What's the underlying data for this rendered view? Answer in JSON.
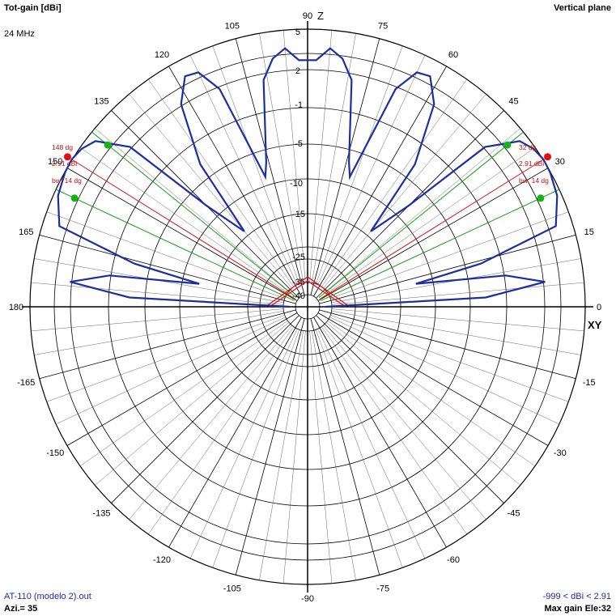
{
  "header": {
    "title": "Tot-gain [dBi]",
    "plane": "Vertical plane",
    "frequency": "24 MHz"
  },
  "footer": {
    "file": "AT-110 (modelo 2).out",
    "azimuth": "Azi.= 35",
    "range": "-999 < dBi < 2.91",
    "max_gain": "Max gain Ele:32"
  },
  "axes": {
    "top": "Z",
    "right": "XY"
  },
  "chart_data": {
    "type": "polar",
    "title": "Tot-gain [dBi]",
    "angle_unit": "degrees",
    "angle_labels": [
      "0",
      "15",
      "30",
      "45",
      "60",
      "75",
      "90",
      "105",
      "120",
      "135",
      "150",
      "165",
      "180",
      "-165",
      "-150",
      "-135",
      "-120",
      "-105",
      "-90",
      "-75",
      "-60",
      "-45",
      "-30",
      "-15"
    ],
    "radial_labels": [
      "5",
      "2",
      "-1",
      "-5",
      "-10",
      "-15",
      "-25",
      "-35",
      "-40"
    ],
    "colors": {
      "pattern": "#1c2ea0",
      "bw_lines": "#14a014",
      "max_lines": "#dc1414",
      "grid": "#000000"
    },
    "series": [
      {
        "points": [
          {
            "angle": 0,
            "db": -40
          },
          {
            "angle": 3,
            "db": -10
          },
          {
            "angle": 6,
            "db": -2
          },
          {
            "angle": 9,
            "db": -7
          },
          {
            "angle": 12,
            "db": -20
          },
          {
            "angle": 14,
            "db": -10
          },
          {
            "angle": 18,
            "db": 0.8
          },
          {
            "angle": 24,
            "db": 2.3
          },
          {
            "angle": 29,
            "db": 2.8
          },
          {
            "angle": 32,
            "db": 2.91
          },
          {
            "angle": 35,
            "db": 2.6
          },
          {
            "angle": 38,
            "db": 1.8
          },
          {
            "angle": 42,
            "db": -2
          },
          {
            "angle": 45,
            "db": -15
          },
          {
            "angle": 50,
            "db": -22
          },
          {
            "angle": 53,
            "db": -10
          },
          {
            "angle": 58,
            "db": -2
          },
          {
            "angle": 62,
            "db": 0.8
          },
          {
            "angle": 65,
            "db": 0.5
          },
          {
            "angle": 68,
            "db": -2.5
          },
          {
            "angle": 72,
            "db": -16
          },
          {
            "angle": 74,
            "db": -14
          },
          {
            "angle": 79,
            "db": -3
          },
          {
            "angle": 82,
            "db": -0.5
          },
          {
            "angle": 85,
            "db": 0.6
          },
          {
            "angle": 88,
            "db": -1
          },
          {
            "angle": 90,
            "db": -1
          },
          {
            "angle": 92,
            "db": -1
          },
          {
            "angle": 95,
            "db": 0.6
          },
          {
            "angle": 98,
            "db": -0.5
          },
          {
            "angle": 101,
            "db": -3
          },
          {
            "angle": 106,
            "db": -14
          },
          {
            "angle": 108,
            "db": -16
          },
          {
            "angle": 112,
            "db": -2.5
          },
          {
            "angle": 115,
            "db": 0.5
          },
          {
            "angle": 118,
            "db": 0.8
          },
          {
            "angle": 122,
            "db": -2
          },
          {
            "angle": 127,
            "db": -10
          },
          {
            "angle": 130,
            "db": -22
          },
          {
            "angle": 135,
            "db": -15
          },
          {
            "angle": 138,
            "db": -2
          },
          {
            "angle": 142,
            "db": 1.8
          },
          {
            "angle": 145,
            "db": 2.6
          },
          {
            "angle": 148,
            "db": 2.91
          },
          {
            "angle": 151,
            "db": 2.8
          },
          {
            "angle": 156,
            "db": 2.3
          },
          {
            "angle": 162,
            "db": 0.8
          },
          {
            "angle": 166,
            "db": -10
          },
          {
            "angle": 168,
            "db": -20
          },
          {
            "angle": 171,
            "db": -7
          },
          {
            "angle": 174,
            "db": -2
          },
          {
            "angle": 177,
            "db": -10
          },
          {
            "angle": 180,
            "db": -40
          }
        ]
      }
    ],
    "annotations": {
      "right_lobe": {
        "max_angle": 32,
        "bw_lower": 25,
        "bw_upper": 39,
        "labels": [
          "32 dg",
          "2.91 dBi",
          "bw: 14 dg"
        ]
      },
      "left_lobe": {
        "max_angle": 148,
        "bw_lower": 141,
        "bw_upper": 155,
        "labels": [
          "148 dg",
          "2.91 dBi",
          "bw: 14 dg"
        ]
      }
    }
  }
}
